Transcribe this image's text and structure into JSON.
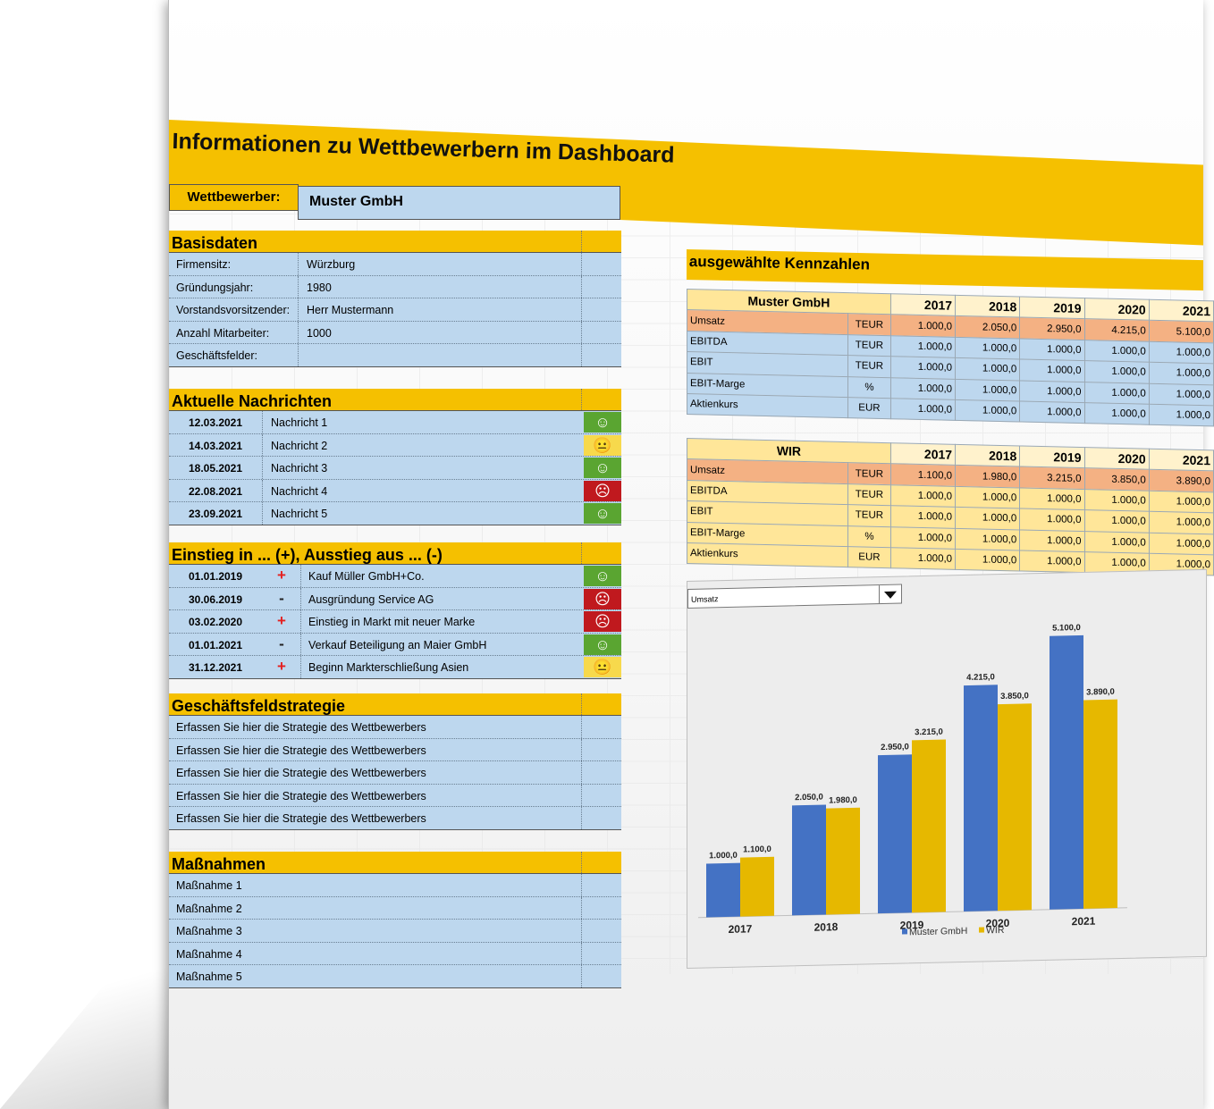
{
  "title": "Informationen zu Wettbewerbern im Dashboard",
  "competitor": {
    "label": "Wettbewerber:",
    "value": "Muster GmbH"
  },
  "basisdaten": {
    "heading": "Basisdaten",
    "rows": [
      {
        "label": "Firmensitz:",
        "value": "Würzburg"
      },
      {
        "label": "Gründungsjahr:",
        "value": "1980"
      },
      {
        "label": "Vorstandsvorsitzender:",
        "value": "Herr Mustermann"
      },
      {
        "label": "Anzahl Mitarbeiter:",
        "value": "1000"
      },
      {
        "label": "Geschäftsfelder:",
        "value": ""
      }
    ]
  },
  "nachrichten": {
    "heading": "Aktuelle Nachrichten",
    "rows": [
      {
        "date": "12.03.2021",
        "text": "Nachricht 1",
        "mood": "positive"
      },
      {
        "date": "14.03.2021",
        "text": "Nachricht 2",
        "mood": "neutral"
      },
      {
        "date": "18.05.2021",
        "text": "Nachricht 3",
        "mood": "positive"
      },
      {
        "date": "22.08.2021",
        "text": "Nachricht 4",
        "mood": "negative"
      },
      {
        "date": "23.09.2021",
        "text": "Nachricht 5",
        "mood": "positive"
      }
    ]
  },
  "einstieg": {
    "heading": "Einstieg in ... (+), Ausstieg aus ... (-)",
    "rows": [
      {
        "date": "01.01.2019",
        "sign": "+",
        "text": "Kauf Müller GmbH+Co.",
        "mood": "positive"
      },
      {
        "date": "30.06.2019",
        "sign": "-",
        "text": "Ausgründung Service AG",
        "mood": "negative"
      },
      {
        "date": "03.02.2020",
        "sign": "+",
        "text": "Einstieg in Markt mit neuer Marke",
        "mood": "negative"
      },
      {
        "date": "01.01.2021",
        "sign": "-",
        "text": "Verkauf Beteiligung an Maier GmbH",
        "mood": "positive"
      },
      {
        "date": "31.12.2021",
        "sign": "+",
        "text": "Beginn Markterschließung Asien",
        "mood": "neutral"
      }
    ]
  },
  "strategie": {
    "heading": "Geschäftsfeldstrategie",
    "rows": [
      "Erfassen Sie hier die Strategie des Wettbewerbers",
      "Erfassen Sie hier die Strategie des Wettbewerbers",
      "Erfassen Sie hier die Strategie des Wettbewerbers",
      "Erfassen Sie hier die Strategie des Wettbewerbers",
      "Erfassen Sie hier die Strategie des Wettbewerbers"
    ]
  },
  "massnahmen": {
    "heading": "Maßnahmen",
    "rows": [
      "Maßnahme 1",
      "Maßnahme 2",
      "Maßnahme 3",
      "Maßnahme 4",
      "Maßnahme 5"
    ]
  },
  "kennzahlen": {
    "heading": "ausgewählte Kennzahlen",
    "years": [
      "2017",
      "2018",
      "2019",
      "2020",
      "2021"
    ],
    "tables": [
      {
        "name": "Muster GmbH",
        "rows": [
          {
            "label": "Umsatz",
            "unit": "TEUR",
            "values": [
              "1.000,0",
              "2.050,0",
              "2.950,0",
              "4.215,0",
              "5.100,0"
            ],
            "highlight": true
          },
          {
            "label": "EBITDA",
            "unit": "TEUR",
            "values": [
              "1.000,0",
              "1.000,0",
              "1.000,0",
              "1.000,0",
              "1.000,0"
            ]
          },
          {
            "label": "EBIT",
            "unit": "TEUR",
            "values": [
              "1.000,0",
              "1.000,0",
              "1.000,0",
              "1.000,0",
              "1.000,0"
            ]
          },
          {
            "label": "EBIT-Marge",
            "unit": "%",
            "values": [
              "1.000,0",
              "1.000,0",
              "1.000,0",
              "1.000,0",
              "1.000,0"
            ]
          },
          {
            "label": "Aktienkurs",
            "unit": "EUR",
            "values": [
              "1.000,0",
              "1.000,0",
              "1.000,0",
              "1.000,0",
              "1.000,0"
            ]
          }
        ]
      },
      {
        "name": "WIR",
        "rows": [
          {
            "label": "Umsatz",
            "unit": "TEUR",
            "values": [
              "1.100,0",
              "1.980,0",
              "3.215,0",
              "3.850,0",
              "3.890,0"
            ],
            "highlight": true
          },
          {
            "label": "EBITDA",
            "unit": "TEUR",
            "values": [
              "1.000,0",
              "1.000,0",
              "1.000,0",
              "1.000,0",
              "1.000,0"
            ]
          },
          {
            "label": "EBIT",
            "unit": "TEUR",
            "values": [
              "1.000,0",
              "1.000,0",
              "1.000,0",
              "1.000,0",
              "1.000,0"
            ]
          },
          {
            "label": "EBIT-Marge",
            "unit": "%",
            "values": [
              "1.000,0",
              "1.000,0",
              "1.000,0",
              "1.000,0",
              "1.000,0"
            ]
          },
          {
            "label": "Aktienkurs",
            "unit": "EUR",
            "values": [
              "1.000,0",
              "1.000,0",
              "1.000,0",
              "1.000,0",
              "1.000,0"
            ]
          }
        ]
      }
    ]
  },
  "chart_selector": {
    "value": "Umsatz"
  },
  "chart_data": {
    "type": "bar",
    "categories": [
      "2017",
      "2018",
      "2019",
      "2020",
      "2021"
    ],
    "series": [
      {
        "name": "Muster GmbH",
        "color": "#4472c4",
        "values": [
          1000.0,
          2050.0,
          2950.0,
          4215.0,
          5100.0
        ],
        "labels": [
          "1.000,0",
          "2.050,0",
          "2.950,0",
          "4.215,0",
          "5.100,0"
        ]
      },
      {
        "name": "WIR",
        "color": "#e6b800",
        "values": [
          1100.0,
          1980.0,
          3215.0,
          3850.0,
          3890.0
        ],
        "labels": [
          "1.100,0",
          "1.980,0",
          "3.215,0",
          "3.850,0",
          "3.890,0"
        ]
      }
    ],
    "ylim": [
      0,
      5500
    ],
    "legend": "bottom"
  },
  "colors": {
    "accent": "#f5c000",
    "cell_blue": "#bdd7ee",
    "header_light": "#ffe699",
    "highlight_orange": "#f4b183"
  }
}
